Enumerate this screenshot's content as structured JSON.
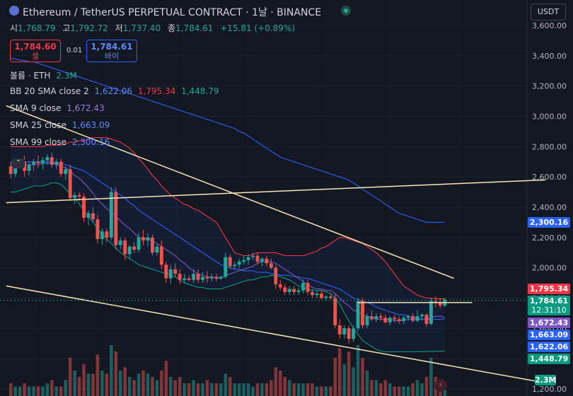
{
  "header": {
    "symbol_title": "Ethereum / TetherUS PERPETUAL CONTRACT · 1날 · BINANCE",
    "ohlc": [
      {
        "label": "시",
        "value": "1,768.79"
      },
      {
        "label": "고",
        "value": "1,792.72"
      },
      {
        "label": "저",
        "value": "1,737.40"
      },
      {
        "label": "종",
        "value": "1,784.61"
      },
      {
        "label": "",
        "value": "+15.81 (+0.89%)"
      }
    ]
  },
  "trade": {
    "sell_price": "1,784.60",
    "sell_label": "셀",
    "spread": "0.01",
    "buy_price": "1,784.61",
    "buy_label": "바이"
  },
  "currency_button": "USDT",
  "legend": {
    "volume": {
      "label": "볼륨 · ETH",
      "value": "2.3M",
      "color": "#26a69a"
    },
    "bb": {
      "label": "BB 20 SMA close 2",
      "values": [
        "1,622.06",
        "1,795.34",
        "1,448.79"
      ],
      "colors": [
        "#2962ff",
        "#f23645",
        "#26a69a"
      ]
    },
    "sma9": {
      "label": "SMA 9 close",
      "value": "1,672.43",
      "color": "#7e57c2"
    },
    "sma25": {
      "label": "SMA 25 close",
      "value": "1,663.09",
      "color": "#2962ff"
    },
    "sma99": {
      "label": "SMA 99 close",
      "value": "2,300.16",
      "color": "#2962ff"
    }
  },
  "price_tags": [
    {
      "value": "2,300.16",
      "color": "#2962ff"
    },
    {
      "value": "1,795.34",
      "color": "#f23645"
    },
    {
      "value": "1,784.61",
      "sub": "12:31:10",
      "color": "#089981"
    },
    {
      "value": "1,672.43",
      "color": "#7e57c2"
    },
    {
      "value": "1,663.09",
      "color": "#2962ff"
    },
    {
      "value": "1,622.06",
      "color": "#2962ff"
    },
    {
      "value": "1,448.79",
      "color": "#089981"
    },
    {
      "value": "2.3M",
      "color": "#089981"
    }
  ],
  "colors": {
    "up": "#26a69a",
    "down": "#ef5350",
    "trend": "#f5e6b3"
  },
  "chart_data": {
    "type": "candlestick",
    "yaxis": {
      "ticks": [
        "3,600.00",
        "3,400.00",
        "3,200.00",
        "3,000.00",
        "2,800.00",
        "2,600.00",
        "2,400.00",
        "2,200.00",
        "2,000.00",
        "1,800.00",
        "1,600.00",
        "1,400.00",
        "1,200.00"
      ],
      "ylim": [
        1200,
        3600
      ]
    },
    "candles": [
      [
        2670,
        2700,
        2590,
        2620
      ],
      [
        2620,
        2700,
        2600,
        2690
      ],
      [
        2690,
        2720,
        2660,
        2700
      ],
      [
        2700,
        2740,
        2600,
        2640
      ],
      [
        2640,
        2700,
        2610,
        2680
      ],
      [
        2680,
        2720,
        2640,
        2700
      ],
      [
        2700,
        2740,
        2660,
        2690
      ],
      [
        2690,
        2730,
        2650,
        2710
      ],
      [
        2710,
        2750,
        2680,
        2730
      ],
      [
        2730,
        2760,
        2660,
        2680
      ],
      [
        2680,
        2720,
        2650,
        2700
      ],
      [
        2700,
        2720,
        2600,
        2620
      ],
      [
        2620,
        2670,
        2580,
        2650
      ],
      [
        2650,
        2680,
        2440,
        2460
      ],
      [
        2460,
        2500,
        2420,
        2480
      ],
      [
        2480,
        2500,
        2440,
        2470
      ],
      [
        2470,
        2490,
        2300,
        2330
      ],
      [
        2330,
        2380,
        2280,
        2360
      ],
      [
        2360,
        2400,
        2300,
        2320
      ],
      [
        2320,
        2350,
        2160,
        2190
      ],
      [
        2190,
        2260,
        2150,
        2240
      ],
      [
        2240,
        2260,
        2170,
        2200
      ],
      [
        2200,
        2530,
        2180,
        2500
      ],
      [
        2500,
        2530,
        2120,
        2150
      ],
      [
        2150,
        2200,
        2120,
        2180
      ],
      [
        2180,
        2200,
        2050,
        2090
      ],
      [
        2090,
        2150,
        2060,
        2140
      ],
      [
        2140,
        2170,
        2100,
        2120
      ],
      [
        2120,
        2230,
        2100,
        2200
      ],
      [
        2200,
        2250,
        2150,
        2180
      ],
      [
        2180,
        2230,
        2140,
        2200
      ],
      [
        2200,
        2220,
        2080,
        2100
      ],
      [
        2100,
        2160,
        2080,
        2140
      ],
      [
        2140,
        2180,
        1990,
        2020
      ],
      [
        2020,
        2040,
        1900,
        1930
      ],
      [
        1930,
        2020,
        1890,
        1990
      ],
      [
        1990,
        2030,
        1940,
        1960
      ],
      [
        1960,
        1990,
        1890,
        1920
      ],
      [
        1920,
        1960,
        1900,
        1930
      ],
      [
        1930,
        1950,
        1910,
        1920
      ],
      [
        1920,
        1990,
        1900,
        1960
      ],
      [
        1960,
        1990,
        1900,
        1920
      ],
      [
        1920,
        1970,
        1900,
        1940
      ],
      [
        1940,
        1980,
        1900,
        1930
      ],
      [
        1930,
        1960,
        1910,
        1940
      ],
      [
        1940,
        1960,
        1910,
        1930
      ],
      [
        1930,
        1950,
        1920,
        1940
      ],
      [
        1940,
        2100,
        1930,
        2070
      ],
      [
        2070,
        2090,
        1990,
        2010
      ],
      [
        2010,
        2040,
        1990,
        2020
      ],
      [
        2020,
        2060,
        2000,
        2040
      ],
      [
        2040,
        2080,
        2020,
        2050
      ],
      [
        2050,
        2090,
        2020,
        2070
      ],
      [
        2070,
        2100,
        2050,
        2080
      ],
      [
        2080,
        2100,
        2020,
        2040
      ],
      [
        2040,
        2070,
        2010,
        2060
      ],
      [
        2060,
        2080,
        2010,
        2030
      ],
      [
        2030,
        2060,
        1990,
        2000
      ],
      [
        2000,
        2020,
        1860,
        1890
      ],
      [
        1890,
        1920,
        1850,
        1870
      ],
      [
        1870,
        1890,
        1820,
        1840
      ],
      [
        1840,
        1880,
        1820,
        1860
      ],
      [
        1860,
        1880,
        1820,
        1840
      ],
      [
        1840,
        1870,
        1820,
        1850
      ],
      [
        1850,
        1920,
        1830,
        1900
      ],
      [
        1900,
        1920,
        1820,
        1840
      ],
      [
        1840,
        1860,
        1800,
        1820
      ],
      [
        1820,
        1850,
        1800,
        1830
      ],
      [
        1830,
        1850,
        1790,
        1800
      ],
      [
        1800,
        1820,
        1780,
        1810
      ],
      [
        1810,
        1830,
        1790,
        1800
      ],
      [
        1800,
        1830,
        1600,
        1620
      ],
      [
        1620,
        1660,
        1530,
        1560
      ],
      [
        1560,
        1620,
        1530,
        1600
      ],
      [
        1600,
        1620,
        1500,
        1530
      ],
      [
        1530,
        1620,
        1510,
        1600
      ],
      [
        1600,
        1800,
        1580,
        1780
      ],
      [
        1780,
        1800,
        1600,
        1620
      ],
      [
        1620,
        1700,
        1600,
        1680
      ],
      [
        1680,
        1720,
        1650,
        1660
      ],
      [
        1660,
        1700,
        1640,
        1680
      ],
      [
        1680,
        1700,
        1650,
        1670
      ],
      [
        1670,
        1690,
        1630,
        1640
      ],
      [
        1640,
        1680,
        1620,
        1670
      ],
      [
        1670,
        1690,
        1640,
        1660
      ],
      [
        1660,
        1680,
        1630,
        1650
      ],
      [
        1650,
        1680,
        1630,
        1670
      ],
      [
        1670,
        1690,
        1650,
        1680
      ],
      [
        1680,
        1700,
        1640,
        1650
      ],
      [
        1650,
        1720,
        1640,
        1680
      ],
      [
        1680,
        1700,
        1650,
        1690
      ],
      [
        1690,
        1700,
        1610,
        1630
      ],
      [
        1630,
        1800,
        1620,
        1780
      ],
      [
        1780,
        1810,
        1740,
        1770
      ],
      [
        1770,
        1800,
        1730,
        1750
      ],
      [
        1750,
        1800,
        1740,
        1790
      ]
    ],
    "volumes": [
      0.4,
      0.3,
      0.3,
      0.4,
      0.3,
      0.3,
      0.3,
      0.3,
      0.4,
      0.5,
      0.3,
      0.3,
      0.5,
      1.2,
      0.8,
      0.6,
      1.0,
      0.7,
      0.7,
      1.3,
      0.8,
      0.7,
      1.6,
      1.4,
      0.8,
      0.9,
      0.6,
      0.5,
      0.7,
      0.8,
      0.7,
      0.6,
      0.5,
      0.8,
      1.1,
      0.6,
      0.5,
      0.6,
      0.4,
      0.4,
      0.5,
      0.4,
      0.4,
      0.5,
      0.4,
      0.4,
      0.4,
      0.7,
      0.6,
      0.4,
      0.4,
      0.4,
      0.4,
      0.3,
      0.4,
      0.4,
      0.4,
      0.5,
      0.9,
      0.8,
      0.6,
      0.5,
      0.4,
      0.4,
      0.4,
      0.4,
      0.4,
      0.3,
      0.3,
      0.3,
      0.3,
      1.2,
      1.5,
      1.0,
      1.4,
      0.9,
      1.6,
      1.2,
      0.8,
      0.5,
      0.5,
      0.4,
      0.5,
      0.4,
      0.3,
      0.3,
      0.3,
      0.3,
      0.4,
      0.5,
      0.4,
      0.6,
      1.2,
      0.6,
      0.5,
      0.2
    ],
    "sma9": [
      2680,
      2680,
      2680,
      2680,
      2680,
      2680,
      2680,
      2690,
      2690,
      2690,
      2680,
      2670,
      2660,
      2640,
      2610,
      2590,
      2560,
      2530,
      2490,
      2450,
      2420,
      2390,
      2370,
      2340,
      2310,
      2280,
      2260,
      2230,
      2200,
      2200,
      2190,
      2180,
      2160,
      2140,
      2120,
      2100,
      2080,
      2050,
      2030,
      2000,
      1980,
      1960,
      1950,
      1940,
      1940,
      1930,
      1930,
      1950,
      1960,
      1970,
      1980,
      1990,
      2000,
      2010,
      2030,
      2040,
      2040,
      2040,
      2030,
      2010,
      1990,
      1970,
      1950,
      1930,
      1910,
      1890,
      1870,
      1860,
      1860,
      1850,
      1850,
      1830,
      1800,
      1770,
      1750,
      1720,
      1710,
      1690,
      1680,
      1670,
      1660,
      1660,
      1660,
      1660,
      1650,
      1650,
      1650,
      1660,
      1660,
      1660,
      1660,
      1660,
      1670,
      1680,
      1680,
      1672
    ],
    "sma25": [
      2700,
      2700,
      2700,
      2700,
      2700,
      2700,
      2700,
      2700,
      2700,
      2700,
      2690,
      2690,
      2680,
      2670,
      2660,
      2650,
      2640,
      2620,
      2600,
      2580,
      2560,
      2540,
      2520,
      2500,
      2480,
      2460,
      2430,
      2410,
      2380,
      2360,
      2340,
      2320,
      2300,
      2280,
      2260,
      2240,
      2220,
      2200,
      2180,
      2160,
      2140,
      2120,
      2100,
      2080,
      2060,
      2040,
      2020,
      2010,
      2000,
      1990,
      1990,
      1980,
      1980,
      1980,
      1970,
      1970,
      1970,
      1960,
      1960,
      1950,
      1950,
      1950,
      1940,
      1940,
      1930,
      1930,
      1920,
      1910,
      1900,
      1890,
      1880,
      1870,
      1860,
      1840,
      1820,
      1800,
      1790,
      1780,
      1770,
      1760,
      1740,
      1730,
      1720,
      1710,
      1700,
      1690,
      1690,
      1680,
      1670,
      1670,
      1660,
      1660,
      1660,
      1660,
      1660,
      1663
    ],
    "sma99": [
      3380,
      3380,
      3370,
      3370,
      3360,
      3360,
      3350,
      3340,
      3330,
      3320,
      3310,
      3300,
      3290,
      3280,
      3270,
      3260,
      3250,
      3240,
      3230,
      3220,
      3210,
      3200,
      3190,
      3180,
      3170,
      3160,
      3150,
      3140,
      3130,
      3120,
      3110,
      3100,
      3090,
      3080,
      3070,
      3060,
      3050,
      3040,
      3030,
      3020,
      3010,
      3000,
      2990,
      2980,
      2970,
      2960,
      2950,
      2940,
      2930,
      2920,
      2900,
      2890,
      2870,
      2850,
      2830,
      2810,
      2790,
      2770,
      2750,
      2730,
      2720,
      2710,
      2700,
      2690,
      2680,
      2670,
      2660,
      2650,
      2640,
      2630,
      2620,
      2610,
      2600,
      2590,
      2580,
      2560,
      2540,
      2520,
      2500,
      2480,
      2460,
      2440,
      2420,
      2400,
      2380,
      2360,
      2350,
      2340,
      2330,
      2320,
      2310,
      2300,
      2300,
      2300,
      2300,
      2300
    ],
    "bb_upper": [
      2800,
      2800,
      2800,
      2800,
      2800,
      2800,
      2800,
      2800,
      2810,
      2810,
      2810,
      2810,
      2820,
      2830,
      2830,
      2840,
      2840,
      2850,
      2860,
      2860,
      2860,
      2860,
      2850,
      2840,
      2830,
      2810,
      2790,
      2760,
      2720,
      2690,
      2650,
      2610,
      2580,
      2540,
      2510,
      2480,
      2460,
      2440,
      2420,
      2410,
      2390,
      2380,
      2360,
      2340,
      2320,
      2300,
      2250,
      2200,
      2150,
      2100,
      2090,
      2080,
      2080,
      2090,
      2100,
      2100,
      2100,
      2100,
      2100,
      2090,
      2080,
      2080,
      2080,
      2080,
      2080,
      2090,
      2100,
      2110,
      2130,
      2140,
      2160,
      2180,
      2200,
      2200,
      2190,
      2180,
      2170,
      2160,
      2140,
      2120,
      2100,
      2070,
      2040,
      2000,
      1960,
      1920,
      1880,
      1860,
      1840,
      1820,
      1810,
      1800,
      1800,
      1795,
      1795,
      1795
    ],
    "bb_lower": [
      2500,
      2500,
      2510,
      2520,
      2530,
      2540,
      2540,
      2540,
      2550,
      2560,
      2560,
      2550,
      2520,
      2490,
      2460,
      2420,
      2380,
      2340,
      2300,
      2260,
      2220,
      2190,
      2160,
      2130,
      2100,
      2080,
      2060,
      2040,
      2020,
      2010,
      2000,
      1990,
      1980,
      1970,
      1960,
      1950,
      1940,
      1920,
      1900,
      1890,
      1880,
      1870,
      1870,
      1860,
      1860,
      1860,
      1860,
      1870,
      1880,
      1890,
      1900,
      1910,
      1920,
      1920,
      1930,
      1940,
      1940,
      1950,
      1950,
      1940,
      1930,
      1920,
      1900,
      1880,
      1870,
      1860,
      1850,
      1850,
      1850,
      1840,
      1830,
      1800,
      1760,
      1700,
      1650,
      1600,
      1560,
      1520,
      1500,
      1480,
      1460,
      1450,
      1445,
      1445,
      1445,
      1445,
      1445,
      1445,
      1445,
      1446,
      1446,
      1447,
      1448,
      1448,
      1449,
      1449
    ]
  }
}
